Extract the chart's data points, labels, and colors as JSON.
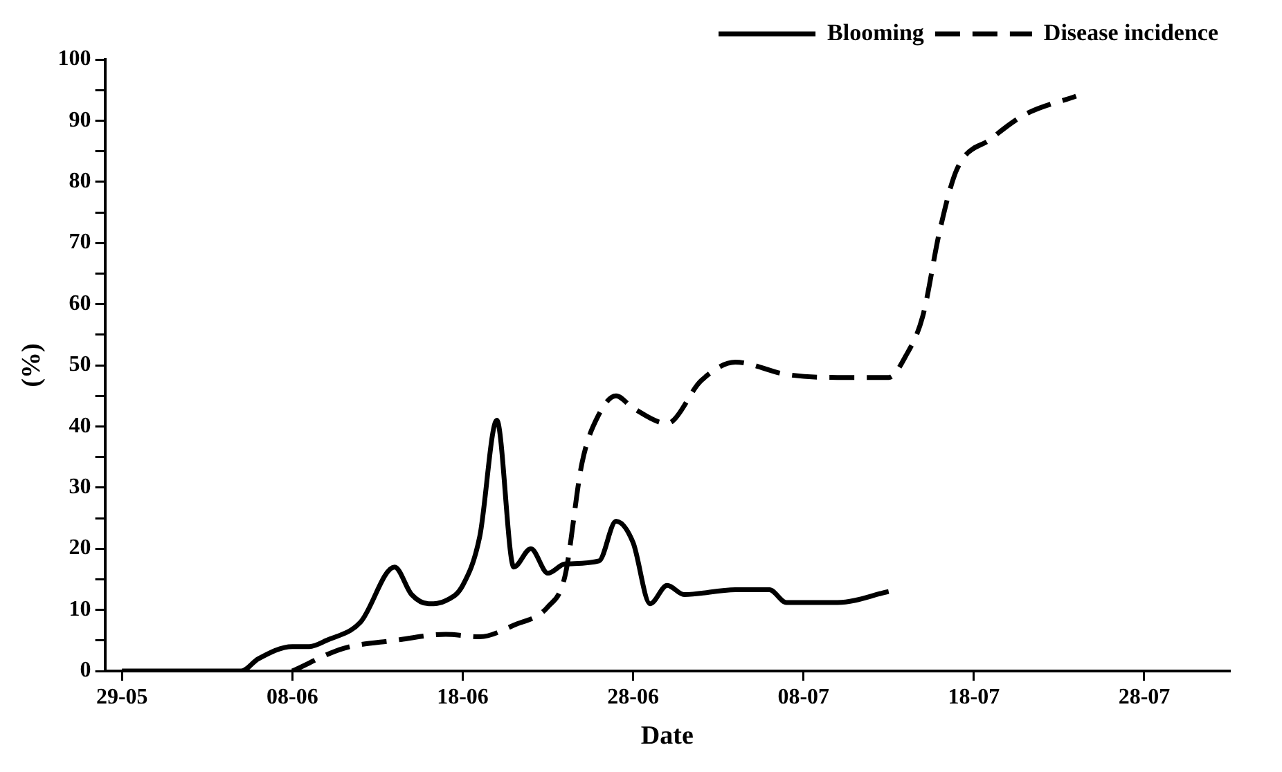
{
  "chart_data": {
    "type": "line",
    "xlabel": "Date",
    "ylabel": "(%)",
    "xlim": [
      "--05-28",
      "--08-02"
    ],
    "xticks": [
      {
        "value": "--05-29",
        "label": "29-05"
      },
      {
        "value": "--06-08",
        "label": "08-06"
      },
      {
        "value": "--06-18",
        "label": "18-06"
      },
      {
        "value": "--06-28",
        "label": "28-06"
      },
      {
        "value": "--07-08",
        "label": "08-07"
      },
      {
        "value": "--07-18",
        "label": "18-07"
      },
      {
        "value": "--07-28",
        "label": "28-07"
      }
    ],
    "ylim": [
      0,
      100
    ],
    "yticks": [
      0,
      {
        "value": 5,
        "label": null
      },
      10,
      {
        "value": 15,
        "label": null
      },
      20,
      {
        "value": 25,
        "label": null
      },
      30,
      {
        "value": 35,
        "label": null
      },
      40,
      {
        "value": 45,
        "label": null
      },
      50,
      {
        "value": 55,
        "label": null
      },
      60,
      {
        "value": 65,
        "label": null
      },
      70,
      {
        "value": 75,
        "label": null
      },
      80,
      {
        "value": 85,
        "label": null
      },
      90,
      {
        "value": 95,
        "label": null
      },
      100
    ],
    "grid": false,
    "legend": "top right",
    "marker": "none",
    "series": [
      {
        "name": "Blooming",
        "color": "#000000",
        "line_style": "solid",
        "x": [
          "--05-29",
          "--06-04",
          "--06-05",
          "--06-06",
          "--06-08",
          "--06-09",
          "--06-10",
          "--06-12",
          "--06-14",
          "--06-15",
          "--06-16",
          "--06-17",
          "--06-18",
          "--06-19",
          "--06-20",
          "--06-21",
          "--06-22",
          "--06-23",
          "--06-24",
          "--06-26",
          "--06-27",
          "--06-28",
          "--06-29",
          "--06-30",
          "--07-01",
          "--07-04",
          "--07-06",
          "--07-07",
          "--07-10",
          "--07-13"
        ],
        "values": [
          0,
          0,
          0,
          2,
          4,
          4,
          5,
          8,
          17,
          12.5,
          11,
          11.5,
          14,
          22,
          41,
          17,
          20,
          16,
          17.5,
          18,
          24.5,
          21,
          11,
          14,
          12.5,
          13.3,
          13.3,
          11.2,
          11.2,
          13
        ]
      },
      {
        "name": "Disease incidence",
        "color": "#000000",
        "line_style": "dashed",
        "x": [
          "--06-08",
          "--06-11",
          "--06-14",
          "--06-17",
          "--06-19",
          "--06-21",
          "--06-23",
          "--06-24",
          "--06-25",
          "--06-26",
          "--06-27",
          "--06-28",
          "--06-30",
          "--07-02",
          "--07-04",
          "--07-07",
          "--07-10",
          "--07-13",
          "--07-14",
          "--07-15",
          "--07-16",
          "--07-17",
          "--07-19",
          "--07-21",
          "--07-24"
        ],
        "values": [
          0,
          3.7,
          5,
          6,
          5.6,
          7.5,
          10.5,
          15.5,
          34,
          42,
          45,
          43,
          40.5,
          47.5,
          50.5,
          48.5,
          48,
          48,
          51.5,
          58,
          72,
          82,
          87,
          91,
          94
        ]
      }
    ]
  }
}
